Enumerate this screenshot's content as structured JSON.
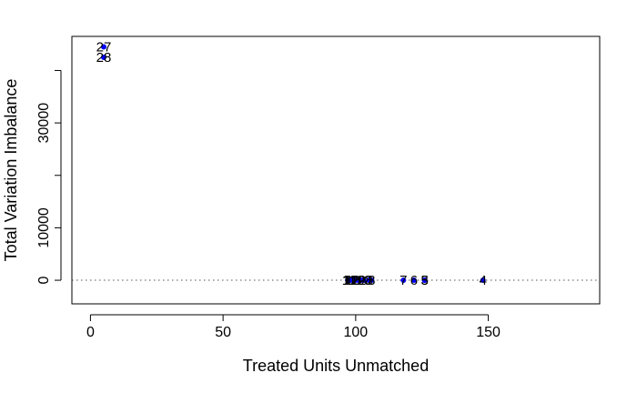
{
  "chart_data": {
    "type": "scatter",
    "title": "",
    "xlabel": "Treated Units Unmatched",
    "ylabel": "Total Variation Imbalance",
    "xlim": [
      -7,
      192
    ],
    "ylim": [
      -4500,
      46500
    ],
    "xticks": [
      0,
      50,
      100,
      150
    ],
    "yticks": [
      0,
      10000,
      30000
    ],
    "reference_line": {
      "y": 0,
      "style": "dotted"
    },
    "marker_color": "#0000ff",
    "label_color": "#000000",
    "points": [
      {
        "label": "27",
        "x": 5,
        "y": 44500
      },
      {
        "label": "28",
        "x": 5,
        "y": 42500
      },
      {
        "label": "1",
        "x": 97,
        "y": 0
      },
      {
        "label": "11",
        "x": 97.5,
        "y": 0
      },
      {
        "label": "12",
        "x": 98,
        "y": 0
      },
      {
        "label": "10",
        "x": 99,
        "y": 0
      },
      {
        "label": "2",
        "x": 100,
        "y": 0
      },
      {
        "label": "12",
        "x": 101,
        "y": 0
      },
      {
        "label": "9",
        "x": 102,
        "y": 0
      },
      {
        "label": "10",
        "x": 103,
        "y": 0
      },
      {
        "label": "8",
        "x": 105,
        "y": 0
      },
      {
        "label": "3",
        "x": 106,
        "y": 0
      },
      {
        "label": "7",
        "x": 118,
        "y": 0
      },
      {
        "label": "6",
        "x": 122,
        "y": 0
      },
      {
        "label": "5",
        "x": 126,
        "y": 0
      },
      {
        "label": "3",
        "x": 126,
        "y": 0
      },
      {
        "label": "4",
        "x": 148,
        "y": 0
      }
    ]
  }
}
